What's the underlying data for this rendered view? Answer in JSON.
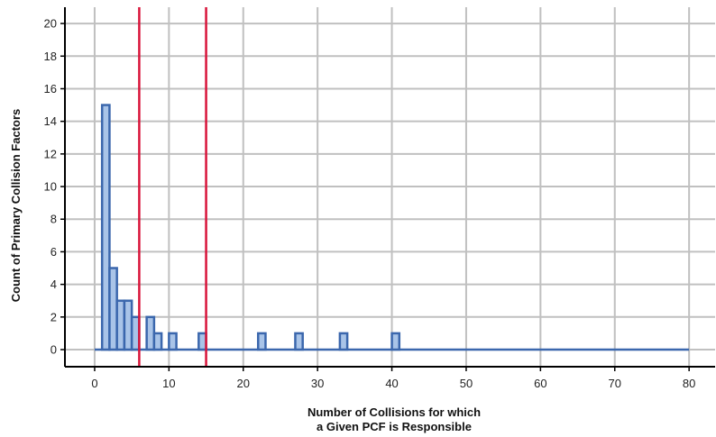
{
  "chart_data": {
    "type": "bar",
    "subtype": "histogram",
    "title": "",
    "xlabel_lines": [
      "Number of Collisions for which",
      "a Given PCF is Responsible"
    ],
    "ylabel": "Count of Primary Collision Factors",
    "xlim": [
      -4,
      83.5
    ],
    "ylim": [
      -1.05,
      21
    ],
    "x_ticks": [
      0,
      10,
      20,
      30,
      40,
      50,
      60,
      70,
      80
    ],
    "y_ticks": [
      0,
      2,
      4,
      6,
      8,
      10,
      12,
      14,
      16,
      18,
      20
    ],
    "grid": true,
    "bin_width": 1,
    "bins": [
      {
        "x0": 1,
        "x1": 2,
        "count": 15
      },
      {
        "x0": 2,
        "x1": 3,
        "count": 5
      },
      {
        "x0": 3,
        "x1": 4,
        "count": 3
      },
      {
        "x0": 4,
        "x1": 5,
        "count": 3
      },
      {
        "x0": 5,
        "x1": 6,
        "count": 2
      },
      {
        "x0": 7,
        "x1": 8,
        "count": 2
      },
      {
        "x0": 8,
        "x1": 9,
        "count": 1
      },
      {
        "x0": 10,
        "x1": 11,
        "count": 1
      },
      {
        "x0": 14,
        "x1": 15,
        "count": 1
      },
      {
        "x0": 22,
        "x1": 23,
        "count": 1
      },
      {
        "x0": 27,
        "x1": 28,
        "count": 1
      },
      {
        "x0": 33,
        "x1": 34,
        "count": 1
      },
      {
        "x0": 40,
        "x1": 41,
        "count": 1
      }
    ],
    "baseline_range": [
      0,
      80
    ],
    "vlines": [
      6,
      15
    ],
    "colors": {
      "bar_fill": "#a9c4e8",
      "bar_stroke": "#3b67ad",
      "vline": "#d8143a",
      "grid": "#c0c0c0",
      "axis": "#000000"
    }
  }
}
